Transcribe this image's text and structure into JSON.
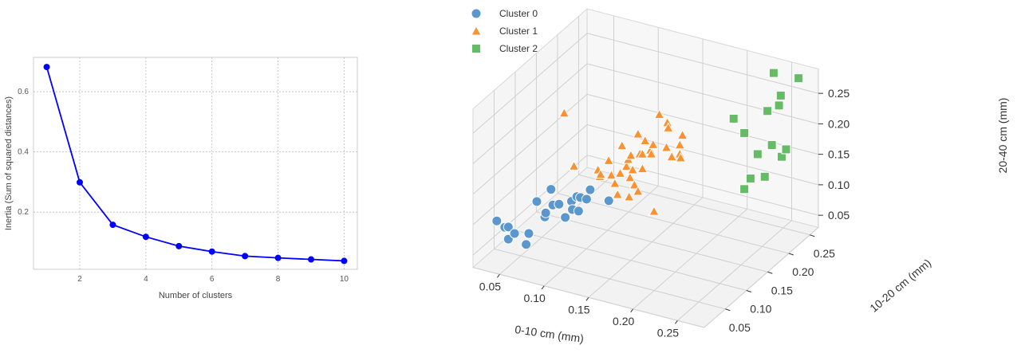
{
  "chart_data": [
    {
      "type": "line",
      "title": "",
      "xlabel": "Number of clusters",
      "ylabel": "Inertia (Sum of squared distances)",
      "x": [
        1,
        2,
        3,
        4,
        5,
        6,
        7,
        8,
        9,
        10
      ],
      "series": [
        {
          "name": "inertia",
          "color": "#0000ff",
          "marker": "circle",
          "values": [
            0.682,
            0.299,
            0.158,
            0.118,
            0.087,
            0.069,
            0.054,
            0.048,
            0.043,
            0.038
          ]
        }
      ],
      "xticks": [
        2,
        4,
        6,
        8,
        10
      ],
      "xtick_labels": [
        "2",
        "4",
        "6",
        "8",
        "10"
      ],
      "yticks": [
        0.2,
        0.4,
        0.6
      ],
      "ytick_labels": [
        "0.2",
        "0.4",
        "0.6"
      ],
      "xlim": [
        0.6,
        10.4
      ],
      "ylim": [
        0.01,
        0.714
      ],
      "grid": true
    },
    {
      "type": "scatter",
      "subtype": "3d",
      "title": "",
      "xlabel": "0-10 cm (mm)",
      "ylabel": "10-20 cm (mm)",
      "zlabel": "20-40 cm (mm)",
      "xlim": [
        0.02,
        0.28
      ],
      "ylim": [
        0.0,
        0.27
      ],
      "zlim": [
        0.03,
        0.29
      ],
      "xticks": [
        0.05,
        0.1,
        0.15,
        0.2,
        0.25
      ],
      "xtick_labels": [
        "0.05",
        "0.10",
        "0.15",
        "0.20",
        "0.25"
      ],
      "yticks": [
        0.05,
        0.1,
        0.15,
        0.2,
        0.25
      ],
      "ytick_labels": [
        "0.05",
        "0.10",
        "0.15",
        "0.20",
        "0.25"
      ],
      "zticks": [
        0.05,
        0.1,
        0.15,
        0.2,
        0.25
      ],
      "ztick_labels": [
        "0.05",
        "0.10",
        "0.15",
        "0.20",
        "0.25"
      ],
      "legend_position": "top-left",
      "grid": true,
      "series": [
        {
          "name": "Cluster 0",
          "marker": "circle",
          "color": "#5b97cc",
          "points": [
            [
              0.023,
              0.05,
              0.077
            ],
            [
              0.032,
              0.05,
              0.07
            ],
            [
              0.036,
              0.05,
              0.072
            ],
            [
              0.036,
              0.05,
              0.052
            ],
            [
              0.043,
              0.05,
              0.064
            ],
            [
              0.056,
              0.05,
              0.051
            ],
            [
              0.059,
              0.05,
              0.07
            ],
            [
              0.068,
              0.05,
              0.126
            ],
            [
              0.077,
              0.05,
              0.104
            ],
            [
              0.078,
              0.05,
              0.111
            ],
            [
              0.084,
              0.05,
              0.152
            ],
            [
              0.086,
              0.05,
              0.127
            ],
            [
              0.093,
              0.05,
              0.131
            ],
            [
              0.1,
              0.05,
              0.112
            ],
            [
              0.107,
              0.05,
              0.141
            ],
            [
              0.108,
              0.05,
              0.128
            ],
            [
              0.113,
              0.05,
              0.151
            ],
            [
              0.115,
              0.05,
              0.128
            ],
            [
              0.117,
              0.05,
              0.151
            ],
            [
              0.124,
              0.05,
              0.151
            ],
            [
              0.128,
              0.05,
              0.168
            ],
            [
              0.149,
              0.05,
              0.158
            ]
          ]
        },
        {
          "name": "Cluster 1",
          "marker": "triangle",
          "color": "#f89232",
          "points": [
            [
              0.056,
              0.14,
              0.212
            ],
            [
              0.067,
              0.14,
              0.129
            ],
            [
              0.094,
              0.14,
              0.133
            ],
            [
              0.096,
              0.14,
              0.123
            ],
            [
              0.097,
              0.14,
              0.127
            ],
            [
              0.106,
              0.14,
              0.153
            ],
            [
              0.109,
              0.14,
              0.13
            ],
            [
              0.113,
              0.14,
              0.118
            ],
            [
              0.116,
              0.14,
              0.101
            ],
            [
              0.119,
              0.14,
              0.137
            ],
            [
              0.121,
              0.14,
              0.183
            ],
            [
              0.126,
              0.14,
              0.151
            ],
            [
              0.128,
              0.14,
              0.163
            ],
            [
              0.13,
              0.14,
              0.134
            ],
            [
              0.131,
              0.14,
              0.171
            ],
            [
              0.133,
              0.14,
              0.148
            ],
            [
              0.135,
              0.14,
              0.124
            ],
            [
              0.139,
              0.14,
              0.115
            ],
            [
              0.129,
              0.14,
              0.102
            ],
            [
              0.139,
              0.14,
              0.209
            ],
            [
              0.141,
              0.14,
              0.177
            ],
            [
              0.144,
              0.14,
              0.178
            ],
            [
              0.144,
              0.14,
              0.154
            ],
            [
              0.147,
              0.14,
              0.201
            ],
            [
              0.153,
              0.14,
              0.188
            ],
            [
              0.154,
              0.14,
              0.182
            ],
            [
              0.156,
              0.14,
              0.198
            ],
            [
              0.157,
              0.14,
              0.089
            ],
            [
              0.163,
              0.14,
              0.25
            ],
            [
              0.171,
              0.14,
              0.199
            ],
            [
              0.172,
              0.14,
              0.24
            ],
            [
              0.173,
              0.14,
              0.232
            ],
            [
              0.177,
              0.14,
              0.186
            ],
            [
              0.186,
              0.14,
              0.209
            ],
            [
              0.186,
              0.14,
              0.194
            ],
            [
              0.187,
              0.14,
              0.188
            ],
            [
              0.189,
              0.14,
              0.226
            ]
          ]
        },
        {
          "name": "Cluster 2",
          "marker": "square",
          "color": "#66bb66",
          "points": [
            [
              0.199,
              0.24,
              0.196
            ],
            [
              0.211,
              0.24,
              0.177
            ],
            [
              0.218,
              0.24,
              0.105
            ],
            [
              0.211,
              0.24,
              0.085
            ],
            [
              0.226,
              0.24,
              0.148
            ],
            [
              0.234,
              0.24,
              0.114
            ],
            [
              0.237,
              0.24,
              0.223
            ],
            [
              0.242,
              0.24,
              0.169
            ],
            [
              0.244,
              0.24,
              0.288
            ],
            [
              0.25,
              0.24,
              0.237
            ],
            [
              0.252,
              0.24,
              0.254
            ],
            [
              0.253,
              0.24,
              0.154
            ],
            [
              0.258,
              0.24,
              0.168
            ],
            [
              0.272,
              0.24,
              0.29
            ]
          ]
        }
      ]
    }
  ]
}
